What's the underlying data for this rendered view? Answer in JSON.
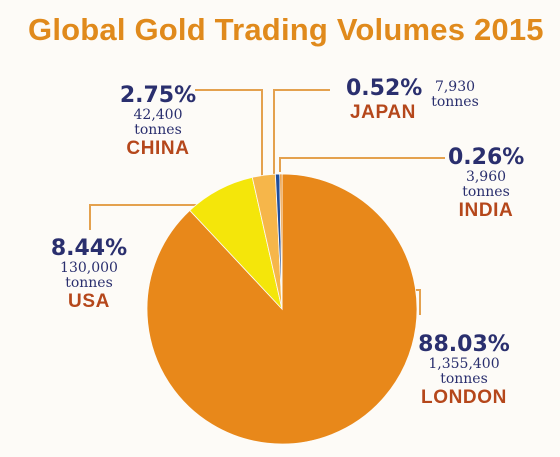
{
  "chart_data": {
    "type": "pie",
    "title": "Global Gold Trading Volumes 2015",
    "slices": [
      {
        "label": "LONDON",
        "percent": "88.03%",
        "value": 88.03,
        "tonnes": "1,355,400",
        "unit": "tonnes",
        "color": "#e8881a"
      },
      {
        "label": "USA",
        "percent": "8.44%",
        "value": 8.44,
        "tonnes": "130,000",
        "unit": "tonnes",
        "color": "#f4e60a"
      },
      {
        "label": "CHINA",
        "percent": "2.75%",
        "value": 2.75,
        "tonnes": "42,400",
        "unit": "tonnes",
        "color": "#f6b64a"
      },
      {
        "label": "JAPAN",
        "percent": "0.52%",
        "value": 0.52,
        "tonnes": "7,930",
        "unit": "tonnes",
        "color": "#1f4e9c"
      },
      {
        "label": "INDIA",
        "percent": "0.26%",
        "value": 0.26,
        "tonnes": "3,960",
        "unit": "tonnes",
        "color": "#e8881a"
      }
    ]
  }
}
